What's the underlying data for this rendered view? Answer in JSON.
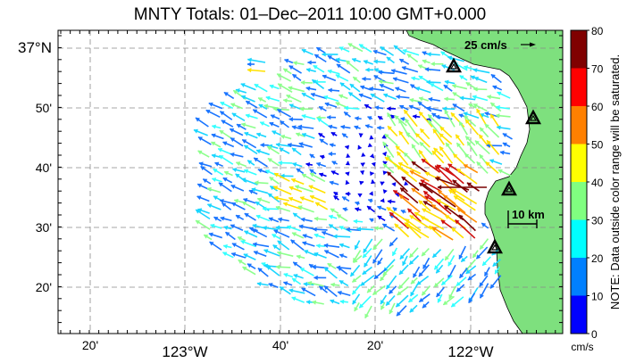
{
  "title": "MNTY Totals: 01–Dec–2011 10:00 GMT+0.000",
  "x_axis": {
    "ticks": [
      {
        "label": "20'",
        "big": false
      },
      {
        "label": "123°W",
        "big": true
      },
      {
        "label": "40'",
        "big": false
      },
      {
        "label": "20'",
        "big": false
      },
      {
        "label": "122°W",
        "big": true
      }
    ]
  },
  "y_axis": {
    "ticks": [
      {
        "label": "37°N",
        "big": true
      },
      {
        "label": "50'",
        "big": false
      },
      {
        "label": "40'",
        "big": false
      },
      {
        "label": "30'",
        "big": false
      },
      {
        "label": "20'",
        "big": false
      }
    ]
  },
  "colorbar": {
    "ticks": [
      "80",
      "70",
      "60",
      "50",
      "40",
      "30",
      "20",
      "10",
      "0"
    ],
    "unit": "cm/s",
    "colors": [
      "#0000ff",
      "#0080ff",
      "#00ffff",
      "#80ff80",
      "#ffff00",
      "#ff8000",
      "#ff0000",
      "#800000"
    ],
    "note": "NOTE: Data outside color range will be saturated."
  },
  "scale_arrow_label": "25 cm/s",
  "scale_km_label": "10 km",
  "land_color": "#7ee07e",
  "vector_colors": {
    "slow": "#0000ee",
    "blue": "#1a75ff",
    "cyan": "#1ad6ff",
    "cyan2": "#33ffff",
    "green": "#8cff8c",
    "yellow": "#ffe100",
    "orange": "#ff8c00",
    "red": "#d01010",
    "darkred": "#7a0000"
  },
  "stations": [
    "site-1",
    "site-2",
    "site-3",
    "site-4"
  ]
}
